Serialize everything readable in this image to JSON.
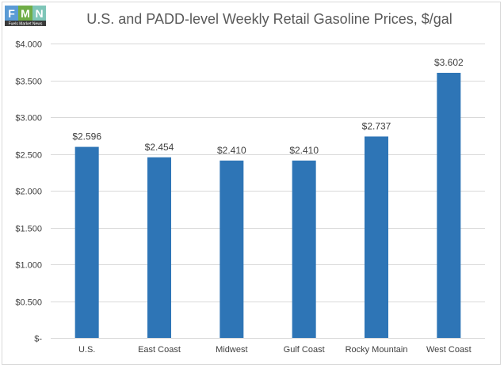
{
  "logo": {
    "letters": [
      "F",
      "M",
      "N"
    ],
    "tagline": "Fuels Market News"
  },
  "chart_data": {
    "type": "bar",
    "title": "U.S. and PADD-level Weekly Retail Gasoline Prices, $/gal",
    "categories": [
      "U.S.",
      "East Coast",
      "Midwest",
      "Gulf Coast",
      "Rocky Mountain",
      "West Coast"
    ],
    "values": [
      2.596,
      2.454,
      2.41,
      2.41,
      2.737,
      3.602
    ],
    "data_labels": [
      "$2.596",
      "$2.454",
      "$2.410",
      "$2.410",
      "$2.737",
      "$3.602"
    ],
    "ylim": [
      0,
      4
    ],
    "yticks": [
      0,
      0.5,
      1,
      1.5,
      2,
      2.5,
      3,
      3.5,
      4
    ],
    "ytick_labels": [
      "$-",
      "$0.500",
      "$1.000",
      "$1.500",
      "$2.000",
      "$2.500",
      "$3.000",
      "$3.500",
      "$4.000"
    ],
    "xlabel": "",
    "ylabel": "",
    "grid": true,
    "bar_color": "#2e75b6",
    "grid_color": "#d9d9d9"
  }
}
